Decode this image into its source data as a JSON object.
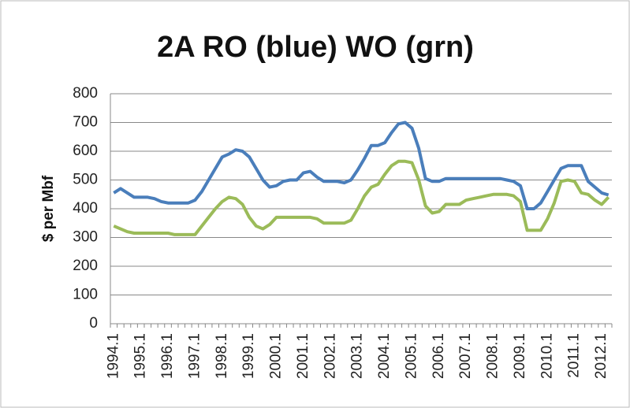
{
  "chart_data": {
    "type": "line",
    "title": "2A  RO (blue)  WO (grn)",
    "y_label": "$ per Mbf",
    "categories": [
      "1994.1",
      null,
      null,
      null,
      "1995.1",
      null,
      null,
      null,
      "1996.1",
      null,
      null,
      null,
      "1997.1",
      null,
      null,
      null,
      "1998.1",
      null,
      null,
      null,
      "1999.1",
      null,
      null,
      null,
      "2000.1",
      null,
      null,
      null,
      "2001.1",
      null,
      null,
      null,
      "2002.1",
      null,
      null,
      null,
      "2003.1",
      null,
      null,
      null,
      "2004.1",
      null,
      null,
      null,
      "2005.1",
      null,
      null,
      null,
      "2006.1",
      null,
      null,
      null,
      "2007.1",
      null,
      null,
      null,
      "2008.1",
      null,
      null,
      null,
      "2009.1",
      null,
      null,
      null,
      "2010.1",
      null,
      null,
      null,
      "2011.1",
      null,
      null,
      null,
      "2012.1",
      null
    ],
    "series": [
      {
        "name": "RO",
        "color": "#4a7ebb",
        "values": [
          455,
          470,
          455,
          440,
          440,
          440,
          435,
          425,
          420,
          420,
          420,
          420,
          430,
          460,
          500,
          540,
          580,
          590,
          605,
          600,
          580,
          540,
          500,
          475,
          480,
          495,
          500,
          500,
          525,
          530,
          510,
          495,
          495,
          495,
          490,
          500,
          535,
          575,
          620,
          620,
          630,
          665,
          695,
          700,
          680,
          610,
          505,
          495,
          495,
          505,
          505,
          505,
          505,
          505,
          505,
          505,
          505,
          505,
          500,
          495,
          480,
          400,
          400,
          420,
          460,
          500,
          540,
          550,
          550,
          550,
          495,
          475,
          455,
          448
        ]
      },
      {
        "name": "WO",
        "color": "#9bbb59",
        "values": [
          340,
          330,
          320,
          315,
          315,
          315,
          315,
          315,
          315,
          310,
          310,
          310,
          310,
          340,
          370,
          400,
          425,
          440,
          435,
          415,
          370,
          340,
          330,
          345,
          370,
          370,
          370,
          370,
          370,
          370,
          365,
          350,
          350,
          350,
          350,
          360,
          400,
          445,
          475,
          485,
          520,
          550,
          565,
          565,
          560,
          500,
          410,
          385,
          390,
          415,
          415,
          415,
          430,
          435,
          440,
          445,
          450,
          450,
          450,
          445,
          425,
          325,
          325,
          325,
          365,
          420,
          495,
          500,
          495,
          455,
          450,
          430,
          415,
          440
        ]
      }
    ],
    "ylim": [
      0,
      800
    ],
    "yticks": [
      0,
      100,
      200,
      300,
      400,
      500,
      600,
      700,
      800
    ],
    "grid": true
  }
}
